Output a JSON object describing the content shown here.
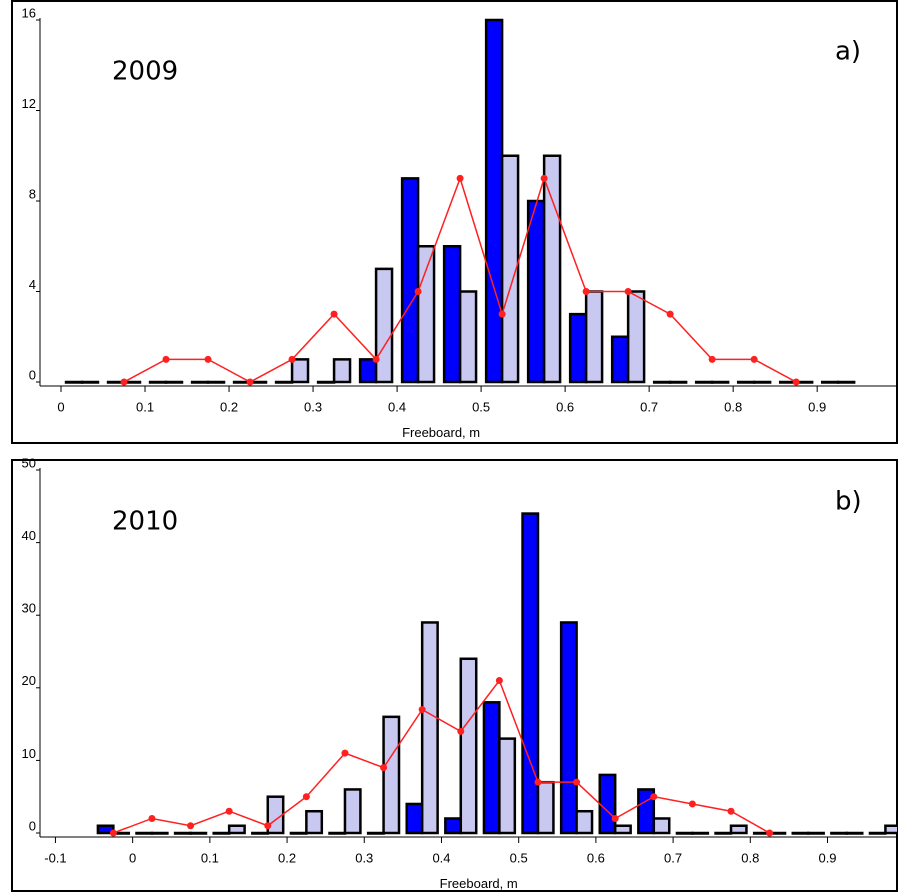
{
  "chart_data": [
    {
      "type": "bar",
      "title": "2009",
      "panel_label": "a)",
      "x_label": "Freeboard, m",
      "x": [
        0.025,
        0.075,
        0.125,
        0.175,
        0.225,
        0.275,
        0.325,
        0.375,
        0.425,
        0.475,
        0.525,
        0.575,
        0.625,
        0.675,
        0.725,
        0.775,
        0.825,
        0.875,
        0.925
      ],
      "bar_width": 0.019,
      "series": [
        {
          "type": "bar",
          "color": "#0000ff",
          "values": [
            0,
            0,
            0,
            0,
            0,
            0,
            0,
            1,
            9,
            6,
            16,
            8,
            3,
            2,
            0,
            0,
            0,
            0,
            0
          ]
        },
        {
          "type": "bar",
          "color": "#c8c8f0",
          "values": [
            0,
            0,
            0,
            0,
            0,
            1,
            1,
            5,
            6,
            4,
            10,
            10,
            4,
            4,
            0,
            0,
            0,
            0,
            0
          ]
        },
        {
          "type": "line",
          "color": "#ff2020",
          "values": [
            null,
            0,
            1,
            1,
            0,
            1,
            3,
            1,
            4,
            9,
            3,
            9,
            4,
            4,
            3,
            1,
            1,
            0,
            null
          ]
        }
      ],
      "xlim": [
        -0.025,
        0.995
      ],
      "xticks": [
        0,
        0.1,
        0.2,
        0.3,
        0.4,
        0.5,
        0.6,
        0.7,
        0.8,
        0.9
      ],
      "ylim": [
        0,
        16
      ],
      "yticks": [
        0,
        4,
        8,
        12,
        16
      ]
    },
    {
      "type": "bar",
      "title": "2010",
      "panel_label": "b)",
      "x_label": "Freeboard, m",
      "x": [
        -0.025,
        0.025,
        0.075,
        0.125,
        0.175,
        0.225,
        0.275,
        0.325,
        0.375,
        0.425,
        0.475,
        0.525,
        0.575,
        0.625,
        0.675,
        0.725,
        0.775,
        0.825,
        0.875,
        0.925,
        0.975
      ],
      "bar_width": 0.02,
      "series": [
        {
          "type": "bar",
          "color": "#0000ff",
          "values": [
            1,
            0,
            0,
            0,
            0,
            0,
            0,
            0,
            4,
            2,
            18,
            44,
            29,
            8,
            6,
            0,
            0,
            0,
            0,
            0,
            0
          ]
        },
        {
          "type": "bar",
          "color": "#c8c8f0",
          "values": [
            0,
            0,
            0,
            1,
            5,
            3,
            6,
            16,
            29,
            24,
            13,
            7,
            3,
            1,
            2,
            0,
            1,
            0,
            0,
            0,
            1
          ]
        },
        {
          "type": "line",
          "color": "#ff2020",
          "values": [
            0,
            2,
            1,
            3,
            1,
            5,
            11,
            9,
            17,
            14,
            21,
            7,
            7,
            2,
            5,
            4,
            3,
            0,
            null,
            null,
            null
          ]
        }
      ],
      "xlim": [
        -0.12,
        0.99
      ],
      "xticks": [
        -0.1,
        0,
        0.1,
        0.2,
        0.3,
        0.4,
        0.5,
        0.6,
        0.7,
        0.8,
        0.9
      ],
      "ylim": [
        0,
        50
      ],
      "yticks": [
        0,
        10,
        20,
        30,
        40,
        50
      ]
    }
  ]
}
